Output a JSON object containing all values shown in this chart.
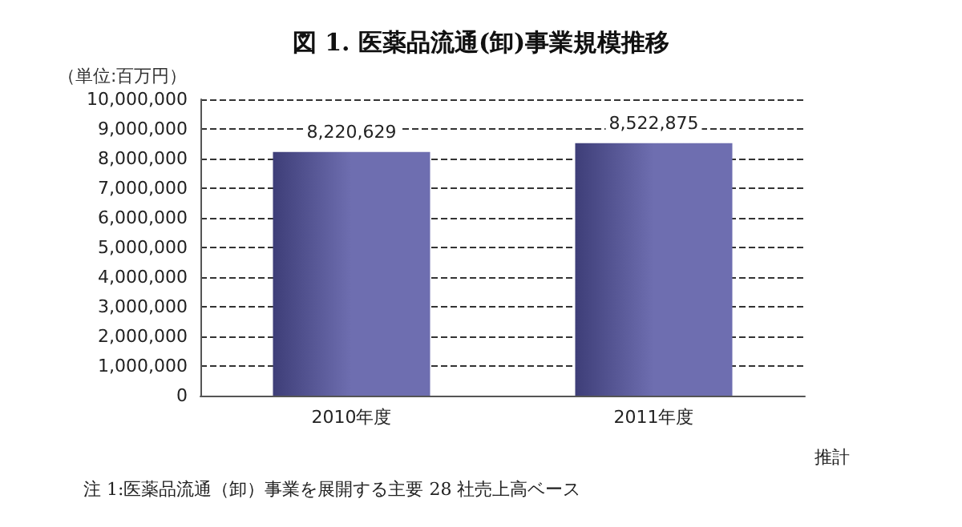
{
  "chart_data": {
    "type": "bar",
    "title": "図 1. 医薬品流通(卸)事業規模推移",
    "ylabel": "（単位:百万円）",
    "categories": [
      "2010年度",
      "2011年度"
    ],
    "values": [
      8220629,
      8522875
    ],
    "value_labels": [
      "8,220,629",
      "8,522,875"
    ],
    "color": "#6e6eb0",
    "ylim": [
      0,
      10000000
    ],
    "yticks": [
      0,
      {
        "value": 1000000,
        "label": "1,000,000"
      },
      {
        "value": 2000000,
        "label": "2,000,000"
      },
      {
        "value": 3000000,
        "label": "3,000,000"
      },
      {
        "value": 4000000,
        "label": "4,000,000"
      },
      {
        "value": 5000000,
        "label": "5,000,000"
      },
      {
        "value": 6000000,
        "label": "6,000,000"
      },
      {
        "value": 7000000,
        "label": "7,000,000"
      },
      {
        "value": 8000000,
        "label": "8,000,000"
      },
      {
        "value": 9000000,
        "label": "9,000,000"
      },
      {
        "value": 10000000,
        "label": "10,000,000"
      }
    ],
    "grid": "y",
    "annotations": [
      "推計",
      "注 1:医薬品流通（卸）事業を展開する主要 28 社売上高ベース"
    ]
  }
}
